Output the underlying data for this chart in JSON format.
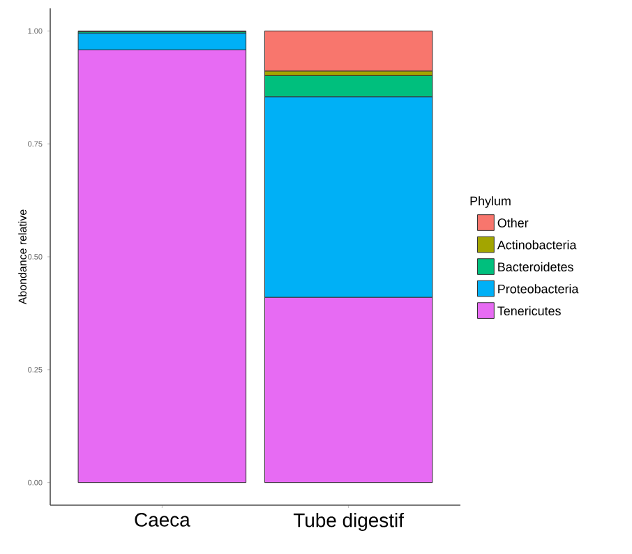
{
  "chart_data": {
    "type": "bar",
    "stacked": true,
    "ylabel": "Abondance relative",
    "legend_title": "Phylum",
    "categories": [
      "Caeca",
      "Tube digestif"
    ],
    "series": [
      {
        "name": "Tenericutes",
        "color": "#e76bf3",
        "values": [
          0.958,
          0.41
        ]
      },
      {
        "name": "Proteobacteria",
        "color": "#00b0f6",
        "values": [
          0.037,
          0.444
        ]
      },
      {
        "name": "Bacteroidetes",
        "color": "#00bf7d",
        "values": [
          0.003,
          0.047
        ]
      },
      {
        "name": "Actinobacteria",
        "color": "#a3a500",
        "values": [
          0,
          0.01
        ]
      },
      {
        "name": "Other",
        "color": "#f8766d",
        "values": [
          0.002,
          0.089
        ]
      }
    ],
    "ylim": [
      -0.05,
      1.05
    ],
    "yticks": [
      {
        "value": 0,
        "label": "0.00"
      },
      {
        "value": 0.25,
        "label": "0.25"
      },
      {
        "value": 0.5,
        "label": "0.50"
      },
      {
        "value": 0.75,
        "label": "0.75"
      },
      {
        "value": 1,
        "label": "1.00"
      }
    ],
    "grid": false,
    "legend": "right"
  }
}
